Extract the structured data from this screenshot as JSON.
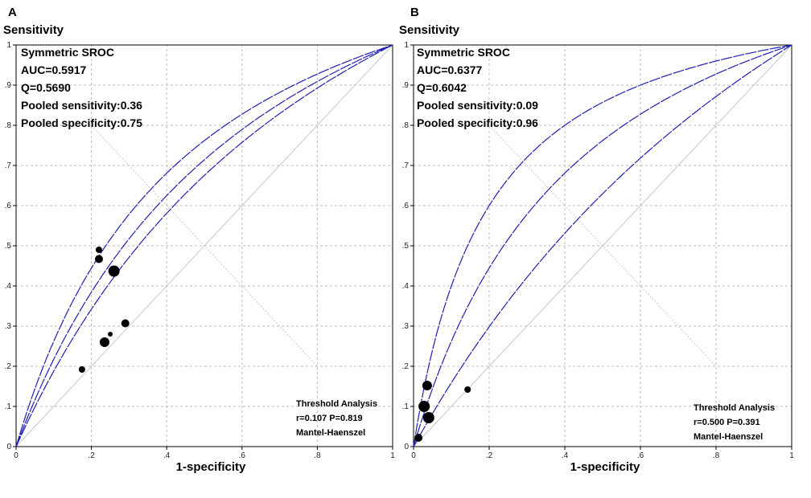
{
  "chart_data": [
    {
      "panel": "A",
      "type": "scatter",
      "ylabel": "Sensitivity",
      "xlabel": "1-specificity",
      "xlim": [
        0,
        1
      ],
      "ylim": [
        0,
        1
      ],
      "xticks": [
        "0",
        ".2",
        ".4",
        ".6",
        ".8",
        "1"
      ],
      "yticks": [
        "0",
        ".1",
        ".2",
        ".3",
        ".4",
        ".5",
        ".6",
        ".7",
        ".8",
        ".9",
        "1"
      ],
      "grid": true,
      "stats": [
        "Symmetric SROC",
        "AUC=0.5917",
        "Q=0.5690",
        "Pooled sensitivity:0.36",
        "Pooled specificity:0.75"
      ],
      "threshold": [
        "Threshold Analysis",
        "r=0.107 P=0.819",
        "Mantel-Haenszel"
      ],
      "curves": {
        "dor": [
          2.08,
          2.5,
          3.2
        ]
      },
      "points": [
        {
          "x": 0.22,
          "y": 0.49,
          "size": 4
        },
        {
          "x": 0.22,
          "y": 0.467,
          "size": 5
        },
        {
          "x": 0.26,
          "y": 0.437,
          "size": 7
        },
        {
          "x": 0.29,
          "y": 0.307,
          "size": 5
        },
        {
          "x": 0.25,
          "y": 0.28,
          "size": 3
        },
        {
          "x": 0.235,
          "y": 0.26,
          "size": 6
        },
        {
          "x": 0.175,
          "y": 0.192,
          "size": 4
        }
      ]
    },
    {
      "panel": "B",
      "type": "scatter",
      "ylabel": "Sensitivity",
      "xlabel": "1-specificity",
      "xlim": [
        0,
        1
      ],
      "ylim": [
        0,
        1
      ],
      "xticks": [
        "0",
        ".2",
        ".4",
        ".6",
        ".8",
        "1"
      ],
      "yticks": [
        "0",
        ".1",
        ".2",
        ".3",
        ".4",
        ".5",
        ".6",
        ".7",
        ".8",
        ".9",
        "1"
      ],
      "grid": true,
      "stats": [
        "Symmetric SROC",
        "AUC=0.6377",
        "Q=0.6042",
        "Pooled sensitivity:0.09",
        "Pooled specificity:0.96"
      ],
      "threshold": [
        "Threshold Analysis",
        "r=0.500 P=0.391",
        "Mantel-Haenszel"
      ],
      "curves": {
        "dor": [
          1.7,
          3.2,
          6.0
        ]
      },
      "points": [
        {
          "x": 0.036,
          "y": 0.152,
          "size": 6
        },
        {
          "x": 0.028,
          "y": 0.1,
          "size": 7
        },
        {
          "x": 0.04,
          "y": 0.072,
          "size": 7
        },
        {
          "x": 0.013,
          "y": 0.022,
          "size": 5
        },
        {
          "x": 0.143,
          "y": 0.142,
          "size": 4
        }
      ]
    }
  ]
}
